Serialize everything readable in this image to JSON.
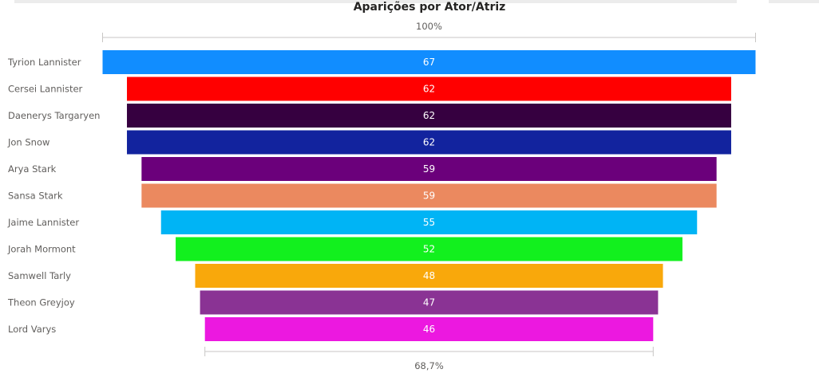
{
  "chart_data": {
    "type": "funnel",
    "title": "Aparições por Ator/Atriz",
    "categories": [
      "Tyrion Lannister",
      "Cersei Lannister",
      "Daenerys Targaryen",
      "Jon Snow",
      "Arya Stark",
      "Sansa Stark",
      "Jaime Lannister",
      "Jorah Mormont",
      "Samwell Tarly",
      "Theon Greyjoy",
      "Lord Varys"
    ],
    "values": [
      67,
      62,
      62,
      62,
      59,
      59,
      55,
      52,
      48,
      47,
      46
    ],
    "colors": [
      "#118DFF",
      "#FF0000",
      "#360040",
      "#12239E",
      "#6B007B",
      "#EB895F",
      "#00B4F5",
      "#12F01E",
      "#F9A80B",
      "#8A3394",
      "#EC18E0"
    ],
    "top_percent_label": "100%",
    "bottom_percent_label": "68,7%"
  }
}
